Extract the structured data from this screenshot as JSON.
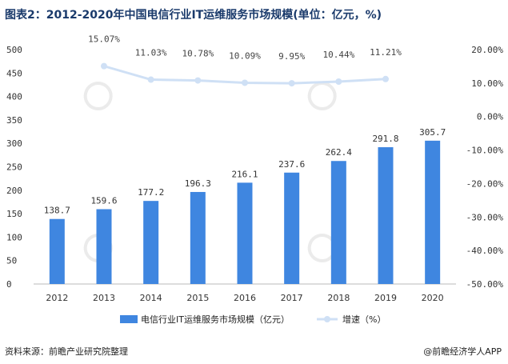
{
  "title": "图表2：2012-2020年中国电信行业IT运维服务市场规模(单位：亿元，%)",
  "footer": {
    "source": "资料来源：前瞻产业研究院整理",
    "brand": "@前瞻经济学人APP"
  },
  "colors": {
    "bar": "#3f86e0",
    "line": "#cfe0f5",
    "title": "#1a3a6b"
  },
  "chart_data": {
    "type": "bar",
    "categories": [
      "2012",
      "2013",
      "2014",
      "2015",
      "2016",
      "2017",
      "2018",
      "2019",
      "2020"
    ],
    "series": [
      {
        "name": "电信行业IT运维服务市场规模（亿元）",
        "type": "bar",
        "axis": "left",
        "values": [
          138.7,
          159.6,
          177.2,
          196.3,
          216.1,
          237.6,
          262.4,
          291.8,
          305.7
        ],
        "labels": [
          "138.7",
          "159.6",
          "177.2",
          "196.3",
          "216.1",
          "237.6",
          "262.4",
          "291.8",
          "305.7"
        ]
      },
      {
        "name": "增速（%）",
        "type": "line",
        "axis": "right",
        "values": [
          null,
          15.07,
          11.03,
          10.78,
          10.09,
          9.95,
          10.44,
          11.21,
          null
        ],
        "labels": [
          "",
          "15.07%",
          "11.03%",
          "10.78%",
          "10.09%",
          "9.95%",
          "10.44%",
          "11.21%",
          ""
        ]
      }
    ],
    "y_left": {
      "ylim": [
        0,
        500
      ],
      "ticks": [
        "0",
        "50",
        "100",
        "150",
        "200",
        "250",
        "300",
        "350",
        "400",
        "450",
        "500"
      ]
    },
    "y_right": {
      "ylim": [
        -50,
        20
      ],
      "ticks": [
        "-50.00%",
        "-40.00%",
        "-30.00%",
        "-20.00%",
        "-10.00%",
        "0.00%",
        "10.00%",
        "20.00%"
      ]
    },
    "legend_position": "bottom",
    "grid": false
  }
}
